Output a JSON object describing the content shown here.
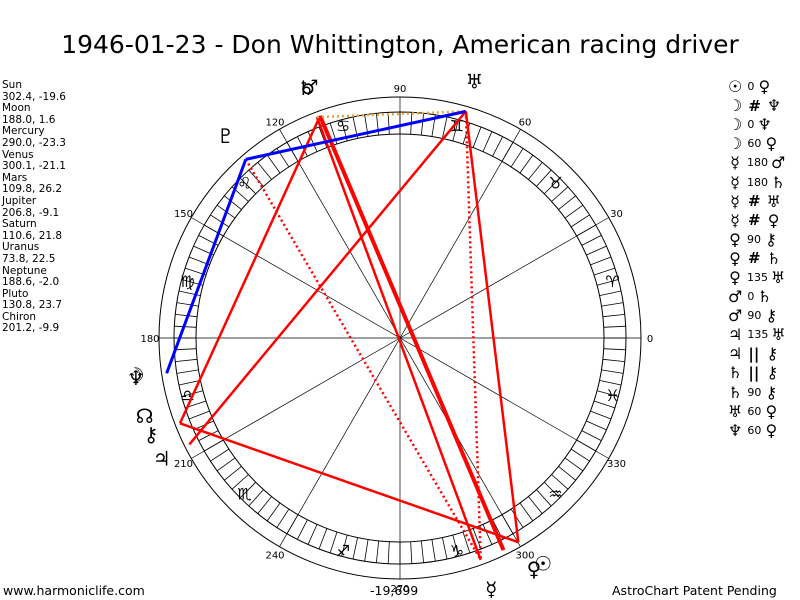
{
  "title": "1946-01-23 - Don Whittington, American racing driver",
  "planets": [
    {
      "name": "Sun",
      "coords": "302.4, -19.6"
    },
    {
      "name": "Moon",
      "coords": "188.0, 1.6"
    },
    {
      "name": "Mercury",
      "coords": "290.0, -23.3"
    },
    {
      "name": "Venus",
      "coords": "300.1, -21.1"
    },
    {
      "name": "Mars",
      "coords": "109.8, 26.2"
    },
    {
      "name": "Jupiter",
      "coords": "206.8, -9.1"
    },
    {
      "name": "Saturn",
      "coords": "110.6, 21.8"
    },
    {
      "name": "Uranus",
      "coords": "73.8, 22.5"
    },
    {
      "name": "Neptune",
      "coords": "188.6, -2.0"
    },
    {
      "name": "Pluto",
      "coords": "130.8, 23.7"
    },
    {
      "name": "Chiron",
      "coords": "201.2, -9.9"
    }
  ],
  "aspects": [
    {
      "p1": "☉",
      "angle": "0",
      "p2": "♀"
    },
    {
      "p1": "☽",
      "sym": "#",
      "p2": "♆"
    },
    {
      "p1": "☽",
      "angle": "0",
      "p2": "♆"
    },
    {
      "p1": "☽",
      "angle": "60",
      "p2": "♀"
    },
    {
      "p1": "☿",
      "angle": "180",
      "p2": "♂"
    },
    {
      "p1": "☿",
      "angle": "180",
      "p2": "♄"
    },
    {
      "p1": "☿",
      "sym": "#",
      "p2": "♅"
    },
    {
      "p1": "☿",
      "sym": "#",
      "p2": "♀"
    },
    {
      "p1": "♀",
      "angle": "90",
      "p2": "⚷"
    },
    {
      "p1": "♀",
      "sym": "#",
      "p2": "♄"
    },
    {
      "p1": "♀",
      "angle": "135",
      "p2": "♅"
    },
    {
      "p1": "♂",
      "angle": "0",
      "p2": "♄"
    },
    {
      "p1": "♂",
      "angle": "90",
      "p2": "⚷"
    },
    {
      "p1": "♃",
      "angle": "135",
      "p2": "♅"
    },
    {
      "p1": "♃",
      "sym": "||",
      "p2": "⚷"
    },
    {
      "p1": "♄",
      "sym": "||",
      "p2": "⚷"
    },
    {
      "p1": "♄",
      "angle": "90",
      "p2": "⚷"
    },
    {
      "p1": "♅",
      "angle": "60",
      "p2": "♀"
    },
    {
      "p1": "♆",
      "angle": "60",
      "p2": "♀"
    }
  ],
  "degree_labels": [
    "0",
    "30",
    "60",
    "90",
    "120",
    "150",
    "180",
    "210",
    "240",
    "270",
    "300",
    "330"
  ],
  "sign_glyphs": [
    "♈",
    "♉",
    "♊",
    "♋",
    "♌",
    "♍",
    "♎",
    "♏",
    "♐",
    "♑",
    "♒",
    "♓"
  ],
  "chart_planets": [
    {
      "name": "Sun",
      "glyph": "☉",
      "lon": 302.4
    },
    {
      "name": "Moon",
      "glyph": "☽",
      "lon": 188.0
    },
    {
      "name": "Mercury",
      "glyph": "☿",
      "lon": 290.0
    },
    {
      "name": "Venus",
      "glyph": "♀",
      "lon": 300.1
    },
    {
      "name": "Mars",
      "glyph": "♂",
      "lon": 109.8
    },
    {
      "name": "Jupiter",
      "glyph": "♃",
      "lon": 206.8
    },
    {
      "name": "Saturn",
      "glyph": "♄",
      "lon": 110.6
    },
    {
      "name": "Uranus",
      "glyph": "♅",
      "lon": 73.8
    },
    {
      "name": "Neptune",
      "glyph": "♆",
      "lon": 188.6
    },
    {
      "name": "Pluto",
      "glyph": "♇",
      "lon": 130.8
    },
    {
      "name": "Chiron",
      "glyph": "⚷",
      "lon": 201.2
    },
    {
      "name": "Node",
      "glyph": "☊",
      "lon": 197.0
    }
  ],
  "aspect_lines": [
    {
      "a": 109.8,
      "b": 296.0,
      "color": "#ff0000",
      "style": "thick"
    },
    {
      "a": 110.6,
      "b": 290.0,
      "color": "#ff0000",
      "style": "solid"
    },
    {
      "a": 109.8,
      "b": 201.2,
      "color": "#ff0000",
      "style": "solid"
    },
    {
      "a": 110.6,
      "b": 73.8,
      "color": "#e8a33a",
      "style": "dotted"
    },
    {
      "a": 73.8,
      "b": 300.1,
      "color": "#ff0000",
      "style": "solid"
    },
    {
      "a": 73.8,
      "b": 290.0,
      "color": "#ff0000",
      "style": "dotted"
    },
    {
      "a": 130.8,
      "b": 290.0,
      "color": "#ff0000",
      "style": "dotted"
    },
    {
      "a": 201.2,
      "b": 300.1,
      "color": "#ff0000",
      "style": "solid"
    },
    {
      "a": 206.8,
      "b": 73.8,
      "color": "#ff0000",
      "style": "solid"
    },
    {
      "a": 73.8,
      "b": 130.8,
      "color": "#0000ff",
      "style": "blue"
    },
    {
      "a": 130.8,
      "b": 188.6,
      "color": "#0000ff",
      "style": "blue"
    }
  ],
  "footer": {
    "left": "www.harmoniclife.com",
    "center": "-19,699",
    "right": "AstroChart Patent Pending"
  }
}
